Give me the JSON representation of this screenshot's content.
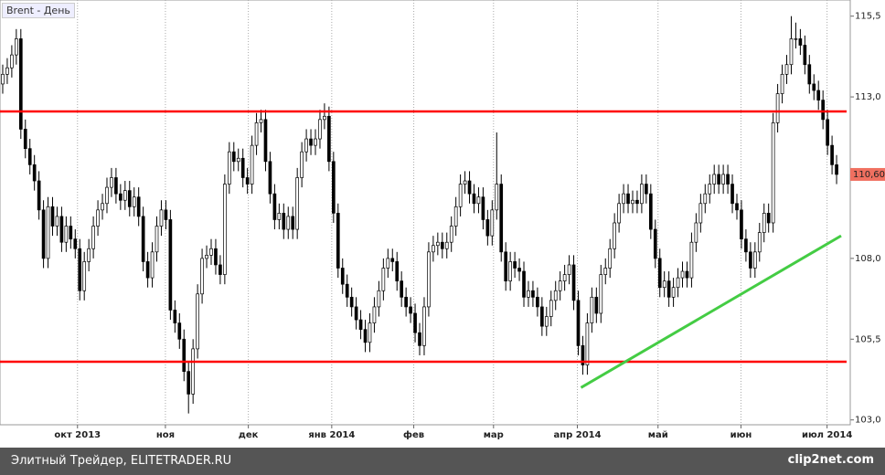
{
  "chart_data": {
    "type": "candlestick",
    "title": "Brent - День",
    "xlim": [
      -0.6,
      185
    ],
    "ylim": [
      102.85,
      116.0
    ],
    "xticks": [
      {
        "value": 16.5,
        "label": "окт 2013"
      },
      {
        "value": 35.9,
        "label": "ноя"
      },
      {
        "value": 54.2,
        "label": "дек"
      },
      {
        "value": 72.6,
        "label": "янв 2014"
      },
      {
        "value": 90.7,
        "label": "фев"
      },
      {
        "value": 108.3,
        "label": "мар"
      },
      {
        "value": 126.8,
        "label": "апр 2014"
      },
      {
        "value": 144.6,
        "label": "май"
      },
      {
        "value": 162.9,
        "label": "июн"
      },
      {
        "value": 181.9,
        "label": "июл 2014"
      }
    ],
    "yticks": [
      {
        "value": 115.5,
        "label": "115,5"
      },
      {
        "value": 113,
        "label": "113,0"
      },
      {
        "value": 108,
        "label": "108,0"
      },
      {
        "value": 105.5,
        "label": "105,5"
      },
      {
        "value": 103,
        "label": "103,0"
      }
    ],
    "up_color": "#ffffff",
    "down_color": "#000000",
    "open": [
      113.4,
      113.7,
      113.9,
      114.3,
      114.8,
      112.0,
      111.4,
      110.9,
      110.4,
      109.5,
      108.0,
      109.6,
      109.0,
      109.3,
      108.5,
      109.0,
      108.6,
      108.3,
      107.0,
      107.9,
      108.3,
      109.0,
      109.5,
      109.7,
      110.2,
      110.5,
      110.0,
      109.8,
      110.1,
      109.6,
      109.9,
      109.3,
      107.9,
      107.4,
      108.2,
      109.0,
      109.5,
      109.2,
      106.4,
      106.0,
      105.5,
      104.5,
      103.8,
      105.2,
      106.9,
      108.0,
      108.1,
      108.3,
      107.8,
      107.5,
      110.3,
      111.3,
      111.0,
      111.1,
      110.5,
      110.3,
      111.5,
      112.2,
      112.3,
      111.0,
      110.0,
      109.2,
      109.4,
      108.9,
      109.3,
      108.9,
      110.5,
      111.3,
      111.7,
      111.5,
      111.7,
      112.3,
      112.4,
      111.0,
      109.4,
      107.7,
      107.2,
      106.8,
      106.5,
      106.1,
      105.8,
      105.4,
      106.0,
      106.5,
      107.0,
      107.7,
      108.0,
      107.9,
      107.3,
      106.8,
      106.5,
      106.3,
      105.7,
      105.3,
      106.5,
      108.2,
      108.4,
      108.5,
      108.3,
      108.5,
      109.0,
      109.6,
      110.3,
      110.4,
      110.0,
      109.7,
      109.9,
      109.2,
      108.7,
      109.5,
      110.3,
      108.2,
      107.3,
      107.9,
      107.7,
      107.6,
      106.8,
      107.0,
      106.8,
      106.5,
      105.9,
      106.2,
      106.7,
      107.0,
      107.3,
      107.5,
      107.8,
      106.7,
      105.3,
      104.7,
      106.0,
      106.8,
      106.3,
      107.5,
      107.7,
      108.3,
      109.1,
      109.7,
      110.0,
      109.7,
      109.8,
      109.7,
      110.3,
      110.0,
      108.9,
      108.0,
      107.1,
      107.3,
      106.8,
      107.1,
      107.4,
      107.6,
      107.4,
      108.5,
      109.1,
      109.7,
      110.0,
      110.3,
      110.6,
      110.3,
      110.6,
      110.3,
      109.7,
      109.5,
      108.6,
      108.2,
      107.7,
      108.2,
      108.8,
      109.4,
      109.1,
      112.2,
      113.1,
      113.7,
      114.0,
      114.8,
      114.8,
      114.6,
      114.0,
      113.4,
      113.2,
      112.9,
      112.3,
      111.5,
      110.9
    ],
    "high": [
      114.0,
      114.2,
      114.6,
      115.1,
      115.1,
      112.3,
      111.7,
      111.2,
      110.7,
      109.8,
      109.9,
      109.9,
      109.6,
      109.6,
      109.3,
      109.3,
      108.9,
      108.6,
      108.2,
      108.6,
      109.3,
      109.8,
      110.0,
      110.5,
      110.8,
      110.8,
      110.3,
      110.4,
      110.4,
      110.2,
      110.2,
      109.6,
      108.2,
      108.5,
      109.3,
      109.8,
      109.8,
      109.5,
      106.7,
      106.3,
      105.8,
      104.8,
      105.5,
      107.2,
      108.3,
      108.4,
      108.6,
      108.6,
      108.1,
      110.6,
      111.6,
      111.6,
      111.4,
      111.4,
      110.8,
      111.8,
      112.5,
      112.6,
      112.6,
      111.3,
      110.3,
      109.7,
      109.7,
      109.6,
      109.6,
      110.8,
      111.6,
      112.0,
      112.0,
      112.0,
      112.6,
      112.8,
      112.7,
      111.3,
      109.7,
      108.0,
      107.5,
      107.1,
      106.8,
      106.4,
      106.1,
      106.3,
      106.8,
      107.3,
      108.0,
      108.3,
      108.3,
      108.2,
      107.6,
      107.1,
      106.8,
      106.6,
      106.0,
      106.8,
      108.5,
      108.7,
      108.8,
      108.8,
      108.8,
      109.3,
      109.9,
      110.6,
      110.7,
      110.7,
      110.3,
      110.2,
      110.2,
      109.5,
      109.8,
      111.9,
      110.6,
      108.5,
      108.2,
      108.2,
      108.0,
      107.9,
      107.3,
      107.3,
      107.1,
      106.8,
      106.5,
      107.0,
      107.3,
      107.6,
      107.8,
      108.1,
      108.1,
      107.0,
      105.6,
      106.3,
      107.1,
      107.1,
      107.8,
      108.0,
      108.6,
      109.4,
      110.0,
      110.3,
      110.3,
      110.1,
      110.1,
      110.6,
      110.6,
      110.3,
      109.2,
      108.3,
      107.6,
      107.6,
      107.4,
      107.7,
      107.9,
      107.9,
      108.8,
      109.4,
      110.0,
      110.3,
      110.6,
      110.9,
      110.9,
      110.9,
      110.9,
      110.6,
      110.0,
      109.8,
      108.9,
      108.5,
      108.5,
      109.1,
      109.7,
      109.7,
      112.5,
      113.4,
      114.0,
      114.3,
      115.5,
      115.3,
      115.1,
      114.9,
      114.3,
      113.7,
      113.5,
      113.2,
      112.6,
      111.8,
      111.2
    ],
    "low": [
      113.1,
      113.4,
      113.6,
      114.0,
      111.7,
      111.1,
      110.6,
      110.1,
      109.2,
      107.7,
      107.7,
      108.7,
      108.7,
      108.2,
      108.2,
      108.3,
      108.0,
      106.7,
      106.7,
      107.6,
      108.0,
      108.7,
      109.2,
      109.4,
      109.9,
      109.7,
      109.5,
      109.5,
      109.3,
      109.3,
      109.0,
      107.6,
      107.1,
      107.1,
      107.9,
      108.7,
      108.9,
      106.1,
      105.7,
      105.2,
      104.2,
      103.2,
      103.5,
      104.9,
      106.6,
      107.7,
      107.8,
      107.5,
      107.2,
      107.2,
      110.0,
      110.7,
      110.7,
      110.2,
      110.0,
      110.0,
      111.2,
      111.9,
      110.7,
      109.7,
      108.9,
      108.9,
      108.6,
      108.6,
      108.6,
      108.6,
      110.2,
      111.0,
      111.2,
      111.2,
      111.4,
      112.0,
      110.7,
      109.1,
      107.4,
      106.9,
      106.5,
      106.2,
      105.8,
      105.5,
      105.1,
      105.1,
      105.7,
      106.2,
      106.7,
      107.4,
      107.6,
      107.0,
      106.5,
      106.2,
      106.0,
      105.4,
      105.0,
      105.0,
      106.2,
      107.9,
      108.1,
      108.0,
      108.0,
      108.2,
      108.7,
      109.3,
      110.0,
      109.7,
      109.4,
      109.4,
      108.9,
      108.4,
      108.4,
      109.2,
      107.9,
      107.0,
      107.0,
      107.4,
      107.3,
      106.5,
      106.5,
      106.5,
      106.2,
      105.6,
      105.6,
      105.9,
      106.4,
      106.7,
      107.0,
      107.2,
      106.4,
      105.0,
      104.4,
      104.4,
      105.7,
      106.0,
      106.0,
      107.2,
      107.4,
      108.0,
      108.8,
      109.4,
      109.4,
      109.4,
      109.4,
      109.4,
      109.7,
      108.6,
      107.7,
      106.8,
      106.8,
      106.5,
      106.5,
      106.8,
      107.1,
      107.1,
      107.1,
      108.2,
      108.8,
      109.4,
      109.7,
      110.0,
      110.0,
      110.0,
      110.0,
      109.4,
      109.2,
      108.3,
      107.9,
      107.4,
      107.4,
      107.9,
      108.5,
      108.8,
      108.8,
      111.9,
      112.8,
      113.4,
      113.7,
      114.5,
      114.3,
      113.7,
      113.1,
      112.9,
      112.6,
      112.0,
      111.2,
      110.6,
      110.3
    ],
    "close": [
      113.7,
      113.9,
      114.3,
      114.8,
      112.0,
      111.4,
      110.9,
      110.4,
      109.5,
      108.0,
      109.6,
      109.0,
      109.3,
      108.5,
      109.0,
      108.6,
      108.3,
      107.0,
      107.9,
      108.3,
      109.0,
      109.5,
      109.7,
      110.2,
      110.5,
      110.0,
      109.8,
      110.1,
      109.6,
      109.9,
      109.3,
      107.9,
      107.4,
      108.2,
      109.0,
      109.5,
      109.2,
      106.4,
      106.0,
      105.5,
      104.5,
      103.8,
      105.2,
      106.9,
      108.0,
      108.1,
      108.3,
      107.8,
      107.5,
      110.3,
      111.3,
      111.0,
      111.1,
      110.5,
      110.3,
      111.5,
      112.2,
      112.3,
      111.0,
      110.0,
      109.2,
      109.4,
      108.9,
      109.3,
      108.9,
      110.5,
      111.3,
      111.7,
      111.5,
      111.7,
      112.3,
      112.4,
      111.0,
      109.4,
      107.7,
      107.2,
      106.8,
      106.5,
      106.1,
      105.8,
      105.4,
      106.0,
      106.5,
      107.0,
      107.7,
      108.0,
      107.9,
      107.3,
      106.8,
      106.5,
      106.3,
      105.7,
      105.3,
      106.5,
      108.2,
      108.4,
      108.5,
      108.3,
      108.5,
      109.0,
      109.6,
      110.3,
      110.4,
      110.0,
      109.7,
      109.9,
      109.2,
      108.7,
      109.5,
      110.3,
      108.2,
      107.3,
      107.9,
      107.7,
      107.6,
      106.8,
      107.0,
      106.8,
      106.5,
      105.9,
      106.2,
      106.7,
      107.0,
      107.3,
      107.5,
      107.8,
      106.7,
      105.3,
      104.7,
      106.0,
      106.8,
      106.3,
      107.5,
      107.7,
      108.3,
      109.1,
      109.7,
      110.0,
      109.7,
      109.8,
      109.7,
      110.3,
      110.0,
      108.9,
      108.0,
      107.1,
      107.3,
      106.8,
      107.1,
      107.4,
      107.6,
      107.4,
      108.5,
      109.1,
      109.7,
      110.0,
      110.3,
      110.6,
      110.3,
      110.6,
      110.3,
      109.7,
      109.5,
      108.6,
      108.2,
      107.7,
      108.2,
      108.8,
      109.4,
      109.1,
      112.2,
      113.1,
      113.7,
      114.0,
      114.8,
      114.8,
      114.6,
      114.0,
      113.4,
      113.2,
      112.9,
      112.3,
      111.5,
      110.9,
      110.6
    ],
    "hlines": [
      112.55,
      104.8
    ],
    "hline_color": "#ff0000",
    "trendline": {
      "x": [
        127.6,
        185
      ],
      "y": [
        104.0,
        108.7
      ],
      "color": "#44cc44"
    },
    "last_price": {
      "value": 110.6,
      "label": "110,60",
      "color": "#f07060"
    },
    "grid": true
  },
  "footer": {
    "left": "Элитный Трейдер, ELITETRADER.RU",
    "right": "clip2net.com"
  }
}
